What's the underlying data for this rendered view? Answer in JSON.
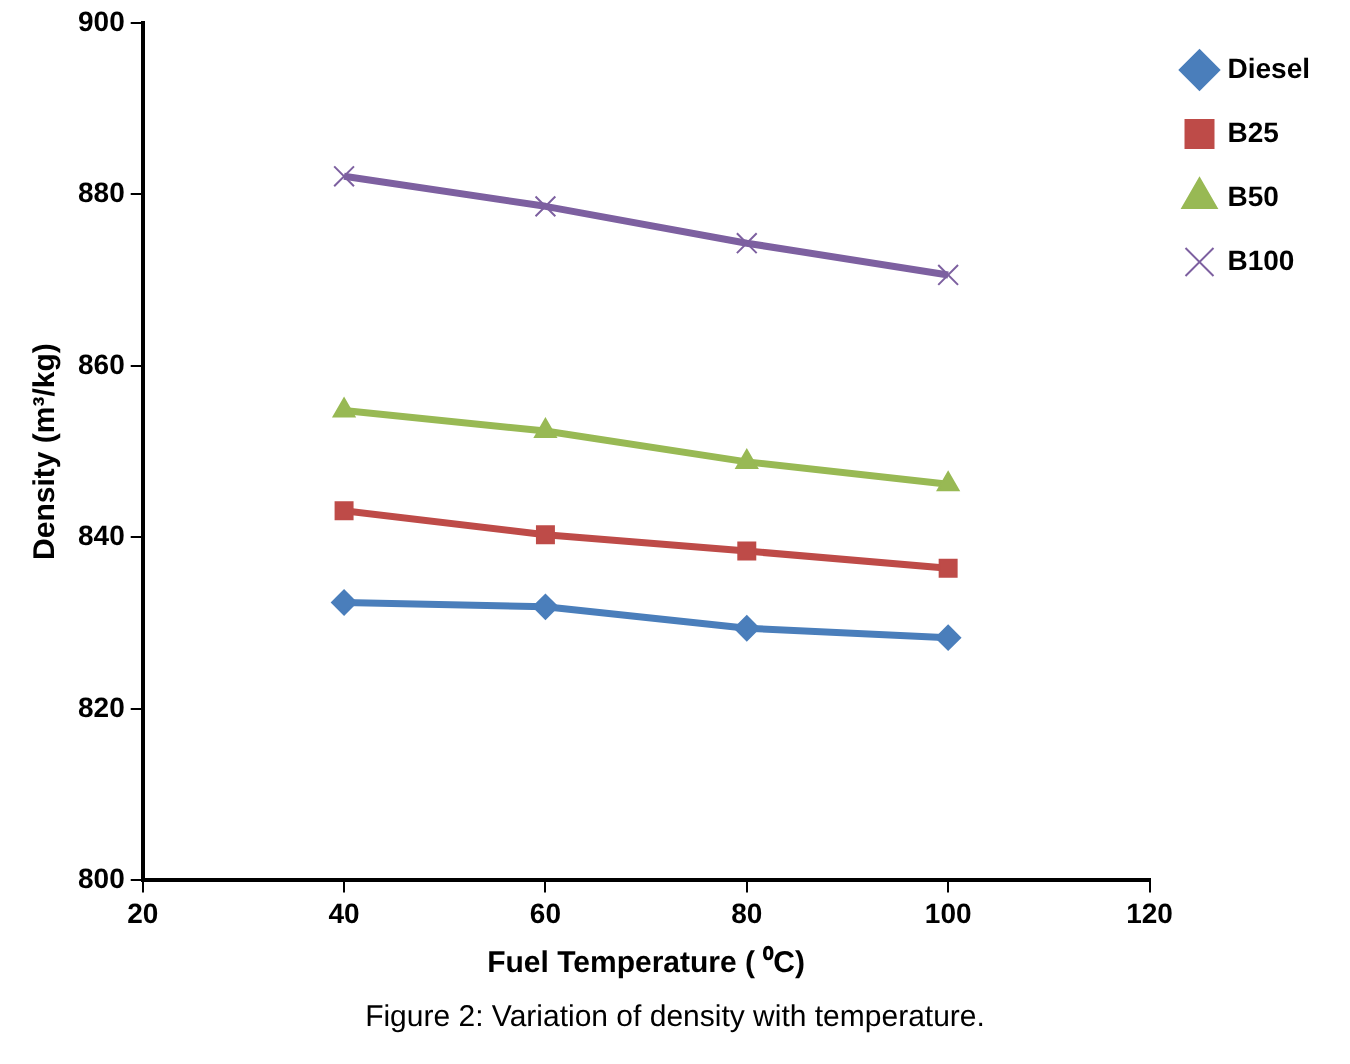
{
  "chart_data": {
    "type": "line",
    "xlabel": "Fuel Temperature ( ⁰C)",
    "ylabel": "Density (m³/kg)",
    "annotations": [
      "Figure 2: Variation of density with temperature."
    ],
    "x": [
      40,
      60,
      80,
      100
    ],
    "xlim": [
      20,
      120
    ],
    "xticks": [
      20,
      40,
      60,
      80,
      100,
      120
    ],
    "ylim": [
      800,
      900
    ],
    "yticks": [
      800,
      820,
      840,
      860,
      880,
      900
    ],
    "grid": false,
    "legend": "top right",
    "series": [
      {
        "name": "Diesel",
        "color": "#4a7ebb",
        "marker": "diamond",
        "values": [
          832.4,
          831.9,
          829.4,
          828.3
        ]
      },
      {
        "name": "B25",
        "color": "#be4b48",
        "marker": "square",
        "values": [
          843.1,
          840.3,
          838.4,
          836.4
        ]
      },
      {
        "name": "B50",
        "color": "#98b954",
        "marker": "triangle",
        "values": [
          854.8,
          852.4,
          848.8,
          846.2
        ]
      },
      {
        "name": "B100",
        "color": "#7d60a0",
        "marker": "cross",
        "values": [
          882.1,
          878.6,
          874.3,
          870.6
        ]
      }
    ]
  }
}
